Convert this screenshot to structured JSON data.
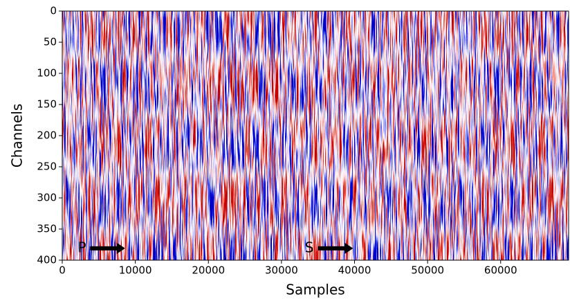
{
  "chart_data": {
    "type": "heatmap",
    "xlabel": "Samples",
    "ylabel": "Channels",
    "xlim": [
      0,
      69300
    ],
    "ylim": [
      400,
      0
    ],
    "xticks": [
      0,
      10000,
      20000,
      30000,
      40000,
      50000,
      60000
    ],
    "yticks": [
      0,
      50,
      100,
      150,
      200,
      250,
      300,
      350,
      400
    ],
    "annotations": [
      {
        "text": "P",
        "x": 2700,
        "y": 381,
        "arrow_x": [
          3800,
          8600
        ]
      },
      {
        "text": "S",
        "x": 33800,
        "y": 381,
        "arrow_x": [
          35000,
          39800
        ]
      }
    ]
  }
}
